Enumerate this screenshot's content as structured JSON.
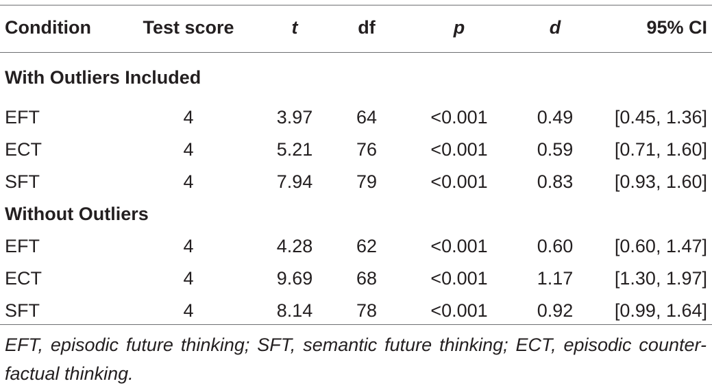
{
  "table": {
    "headers": {
      "condition": "Condition",
      "test_score": "Test score",
      "t": "t",
      "df": "df",
      "p": "p",
      "d": "d",
      "ci": "95% CI"
    },
    "sections": [
      {
        "title": "With Outliers Included",
        "rows": [
          {
            "condition": "EFT",
            "test_score": "4",
            "t": "3.97",
            "df": "64",
            "p": "<0.001",
            "d": "0.49",
            "ci": "[0.45, 1.36]"
          },
          {
            "condition": "ECT",
            "test_score": "4",
            "t": "5.21",
            "df": "76",
            "p": "<0.001",
            "d": "0.59",
            "ci": "[0.71, 1.60]"
          },
          {
            "condition": "SFT",
            "test_score": "4",
            "t": "7.94",
            "df": "79",
            "p": "<0.001",
            "d": "0.83",
            "ci": "[0.93, 1.60]"
          }
        ]
      },
      {
        "title": "Without Outliers",
        "rows": [
          {
            "condition": "EFT",
            "test_score": "4",
            "t": "4.28",
            "df": "62",
            "p": "<0.001",
            "d": "0.60",
            "ci": "[0.60, 1.47]"
          },
          {
            "condition": "ECT",
            "test_score": "4",
            "t": "9.69",
            "df": "68",
            "p": "<0.001",
            "d": "1.17",
            "ci": "[1.30, 1.97]"
          },
          {
            "condition": "SFT",
            "test_score": "4",
            "t": "8.14",
            "df": "78",
            "p": "<0.001",
            "d": "0.92",
            "ci": "[0.99, 1.64]"
          }
        ]
      }
    ]
  },
  "footnote": "EFT, episodic future thinking; SFT, semantic future thinking; ECT, episodic counter-factual thinking."
}
